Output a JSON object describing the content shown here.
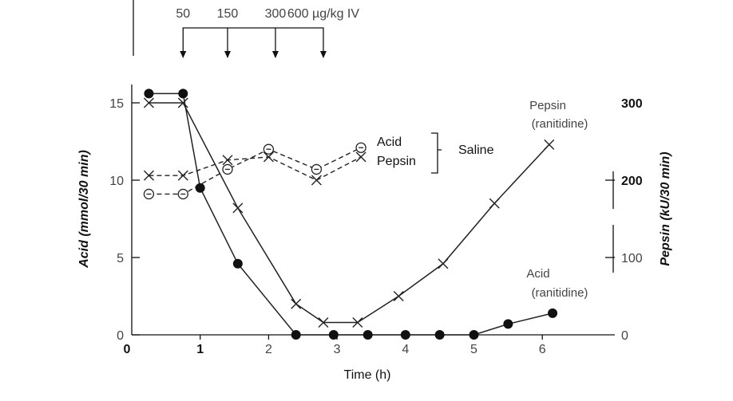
{
  "chart_data": {
    "type": "line",
    "xlabel": "Time (h)",
    "ylabel_left": "Acid (mmol/30 min)",
    "ylabel_right": "Pepsin (kU/30 min)",
    "xlim": [
      0,
      7
    ],
    "ylim_left": [
      0,
      16
    ],
    "ylim_right": [
      0,
      320
    ],
    "x_ticks": [
      "0",
      "1",
      "2",
      "3",
      "4",
      "5",
      "6"
    ],
    "y_left_ticks": [
      "0",
      "5",
      "10",
      "15"
    ],
    "y_right_ticks": [
      "0",
      "100",
      "200",
      "300"
    ],
    "dose_labels": [
      "50",
      "150",
      "300",
      "600 µg/kg IV"
    ],
    "dose_times": [
      0.75,
      1.4,
      2.1,
      2.8
    ],
    "bracket_labels": {
      "acid": "Acid",
      "pepsin": "Pepsin",
      "group": "Saline"
    },
    "series": [
      {
        "name": "Acid (ranitidine)",
        "label_lines": [
          "Acid",
          "(ranitidine)"
        ],
        "axis": "left",
        "marker": "filled-circle",
        "line": "solid",
        "x": [
          0.25,
          0.75,
          1.0,
          1.55,
          2.4,
          2.95,
          3.45,
          4.0,
          4.5,
          5.0,
          5.5,
          6.15
        ],
        "values": [
          15.6,
          15.6,
          9.5,
          4.6,
          0,
          0,
          0,
          0,
          0,
          0,
          0.7,
          1.4
        ]
      },
      {
        "name": "Pepsin (ranitidine)",
        "label_lines": [
          "Pepsin",
          "(ranitidine)"
        ],
        "axis": "right",
        "marker": "cross",
        "line": "solid",
        "x": [
          0.25,
          0.75,
          1.55,
          2.4,
          2.8,
          3.3,
          3.9,
          4.55,
          5.3,
          6.1
        ],
        "values": [
          300,
          300,
          164,
          40,
          16,
          16,
          50,
          92,
          170,
          246
        ]
      },
      {
        "name": "Acid (saline)",
        "axis": "left",
        "marker": "open-circle-dash",
        "line": "dashed",
        "x": [
          0.25,
          0.75,
          1.4,
          2.0,
          2.7,
          3.35
        ],
        "values": [
          9.1,
          9.1,
          10.7,
          12.0,
          10.7,
          12.1
        ]
      },
      {
        "name": "Pepsin (saline)",
        "axis": "right",
        "marker": "cross",
        "line": "dashed",
        "x": [
          0.25,
          0.75,
          1.4,
          2.0,
          2.7,
          3.35
        ],
        "values": [
          206,
          206,
          226,
          230,
          200,
          230
        ]
      }
    ]
  }
}
